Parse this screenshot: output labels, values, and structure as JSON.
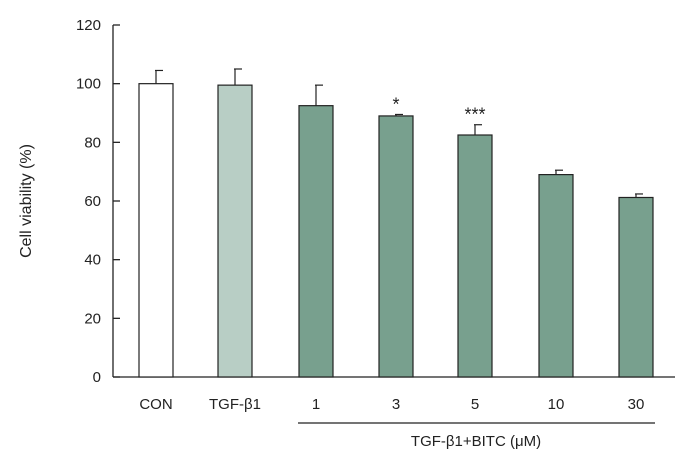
{
  "chart_data": {
    "type": "bar",
    "ylabel": "Cell viability (%)",
    "ylim": [
      0,
      120
    ],
    "yticks": [
      0,
      20,
      40,
      60,
      80,
      100,
      120
    ],
    "categories": [
      "CON",
      "TGF-β1",
      "1",
      "3",
      "5",
      "10",
      "30"
    ],
    "values": [
      100,
      99.5,
      92.5,
      89,
      82.5,
      69,
      61.2
    ],
    "errors": [
      4.5,
      5.5,
      7,
      0.5,
      3.5,
      1.5,
      1.2
    ],
    "significance": [
      "",
      "",
      "",
      "*",
      "***",
      "",
      ""
    ],
    "colors": [
      "#ffffff",
      "#b8cec5",
      "#78a08e",
      "#78a08e",
      "#78a08e",
      "#78a08e",
      "#78a08e"
    ],
    "group_label": "TGF-β1+BITC (μM)",
    "grid": false
  }
}
